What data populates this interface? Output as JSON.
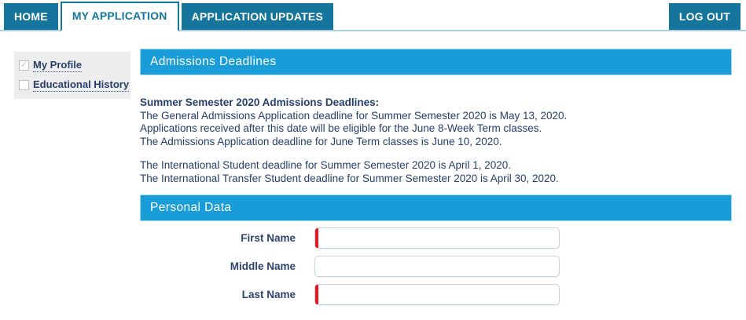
{
  "nav": {
    "tabs": [
      {
        "label": "HOME",
        "active": false
      },
      {
        "label": "MY APPLICATION",
        "active": true
      },
      {
        "label": "APPLICATION UPDATES",
        "active": false
      }
    ],
    "logout_label": "LOG OUT"
  },
  "sidebar": {
    "items": [
      {
        "label": "My Profile",
        "checked": true,
        "check_glyph": "✓"
      },
      {
        "label": "Educational History",
        "checked": false,
        "check_glyph": ""
      }
    ]
  },
  "main": {
    "section1_title": "Admissions Deadlines",
    "deadlines_heading": "Summer Semester 2020 Admissions Deadlines:",
    "paragraph1_lines": [
      "The General Admissions Application deadline for Summer Semester 2020 is May 13, 2020.",
      "Applications received after this date will be eligible for the June 8-Week Term classes.",
      "The Admissions Application deadline for June Term classes is June 10, 2020."
    ],
    "paragraph2_lines": [
      "The International Student deadline for Summer Semester 2020 is April 1, 2020.",
      "The International Transfer Student deadline for Summer Semester 2020 is April 30, 2020."
    ],
    "section2_title": "Personal Data",
    "form": {
      "fields": [
        {
          "label": "First Name",
          "value": "",
          "required": true
        },
        {
          "label": "Middle Name",
          "value": "",
          "required": false
        },
        {
          "label": "Last Name",
          "value": "",
          "required": true
        }
      ]
    }
  },
  "colors": {
    "nav_teal": "#15759c",
    "tab_rule_blue": "#a9cfe0",
    "section_blue": "#189dd9",
    "text_navy": "#26406e",
    "required_red": "#ee1520",
    "sidebar_gray": "#ededed"
  }
}
